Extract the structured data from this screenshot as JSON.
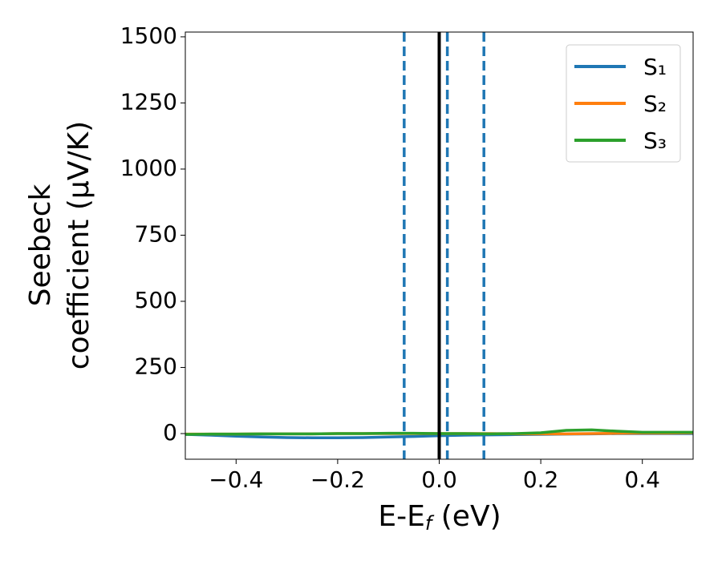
{
  "chart_data": {
    "type": "line",
    "x_label": [
      "E-E",
      "f",
      " (eV)"
    ],
    "y_label": [
      "Seebeck",
      "coefficient  (μV/K)"
    ],
    "x": [
      -0.5,
      -0.45,
      -0.4,
      -0.35,
      -0.3,
      -0.25,
      -0.2,
      -0.15,
      -0.1,
      -0.05,
      0,
      0.05,
      0.1,
      0.15,
      0.2,
      0.25,
      0.3,
      0.35,
      0.4,
      0.45,
      0.5
    ],
    "series": [
      {
        "name": "S₁",
        "color": "#1f77b4",
        "values": [
          -3,
          -6,
          -10,
          -13,
          -15,
          -16,
          -16,
          -15,
          -13,
          -11,
          -8,
          -6,
          -5,
          -4,
          -3,
          -2,
          -1,
          0,
          0,
          0,
          0
        ]
      },
      {
        "name": "S₂",
        "color": "#ff7f0e",
        "values": [
          -2,
          -2,
          -2,
          -1,
          -1,
          -1,
          0,
          0,
          0,
          0,
          0,
          0,
          0,
          -1,
          -1,
          -1,
          0,
          1,
          2,
          2,
          3
        ]
      },
      {
        "name": "S₃",
        "color": "#2ca02c",
        "values": [
          -3,
          -2,
          -2,
          -1,
          -1,
          -1,
          0,
          0,
          1,
          1,
          0,
          0,
          -1,
          0,
          3,
          12,
          14,
          9,
          5,
          5,
          5
        ]
      }
    ],
    "vlines": [
      {
        "x": 0,
        "color": "#000000",
        "dashed": false
      },
      {
        "x": -0.069,
        "color": "#1f77b4",
        "dashed": true
      },
      {
        "x": 0.016,
        "color": "#1f77b4",
        "dashed": true
      },
      {
        "x": 0.088,
        "color": "#1f77b4",
        "dashed": true
      }
    ],
    "xlim": [
      -0.5,
      0.5
    ],
    "ylim": [
      -97,
      1518
    ],
    "xticks": [
      {
        "value": -0.4,
        "label": "−0.4"
      },
      {
        "value": -0.2,
        "label": "−0.2"
      },
      {
        "value": 0,
        "label": "0.0"
      },
      0.2,
      0.4
    ],
    "yticks": [
      0,
      250,
      500,
      750,
      1000,
      1250,
      1500
    ],
    "legend": "upper right",
    "grid": false
  }
}
